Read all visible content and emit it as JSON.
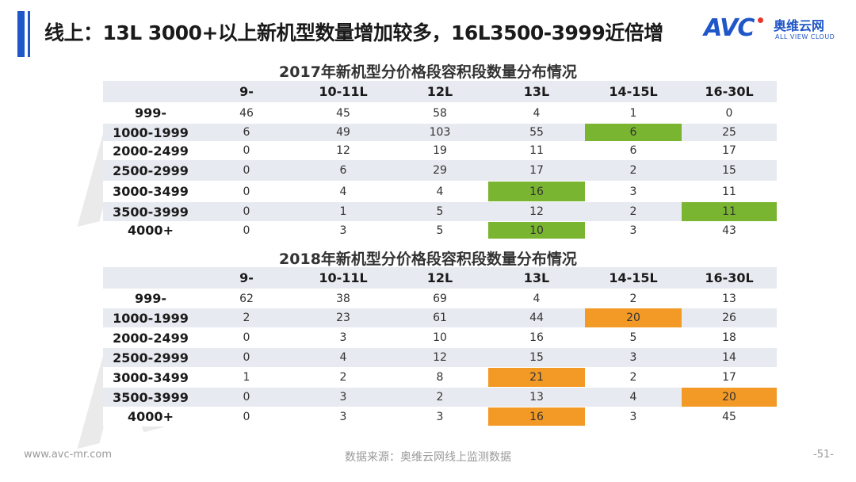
{
  "header": {
    "title": "线上：13L 3000+以上新机型数量增加较多，16L3500-3999近倍增",
    "logo_text": "AVC",
    "logo_cn": "奥维云网",
    "logo_en": "ALL VIEW CLOUD"
  },
  "watermark_text": "AVC",
  "columns": [
    "9-",
    "10-11L",
    "12L",
    "13L",
    "14-15L",
    "16-30L"
  ],
  "colors": {
    "accent": "#1f56c8",
    "highlight_2017": "#7ab532",
    "highlight_2018": "#f39a26",
    "band": "#e8eaf1"
  },
  "table_2017": {
    "title": "2017年新机型分价格段容积段数量分布情况",
    "rows": [
      {
        "label": "999-",
        "values": [
          "46",
          "45",
          "58",
          "4",
          "1",
          "0"
        ]
      },
      {
        "label": "1000-1999",
        "values": [
          "6",
          "49",
          "103",
          "55",
          "6",
          "25"
        ]
      },
      {
        "label": "2000-2499",
        "values": [
          "0",
          "12",
          "19",
          "11",
          "6",
          "17"
        ]
      },
      {
        "label": "2500-2999",
        "values": [
          "0",
          "6",
          "29",
          "17",
          "2",
          "15"
        ]
      },
      {
        "label": "3000-3499",
        "values": [
          "0",
          "4",
          "4",
          "16",
          "3",
          "11"
        ]
      },
      {
        "label": "3500-3999",
        "values": [
          "0",
          "1",
          "5",
          "12",
          "2",
          "11"
        ]
      },
      {
        "label": "4000+",
        "values": [
          "0",
          "3",
          "5",
          "10",
          "3",
          "43"
        ]
      }
    ],
    "highlights": [
      [
        1,
        4
      ],
      [
        4,
        3
      ],
      [
        5,
        5
      ],
      [
        6,
        3
      ]
    ]
  },
  "table_2018": {
    "title": "2018年新机型分价格段容积段数量分布情况",
    "rows": [
      {
        "label": "999-",
        "values": [
          "62",
          "38",
          "69",
          "4",
          "2",
          "13"
        ]
      },
      {
        "label": "1000-1999",
        "values": [
          "2",
          "23",
          "61",
          "44",
          "20",
          "26"
        ]
      },
      {
        "label": "2000-2499",
        "values": [
          "0",
          "3",
          "10",
          "16",
          "5",
          "18"
        ]
      },
      {
        "label": "2500-2999",
        "values": [
          "0",
          "4",
          "12",
          "15",
          "3",
          "14"
        ]
      },
      {
        "label": "3000-3499",
        "values": [
          "1",
          "2",
          "8",
          "21",
          "2",
          "17"
        ]
      },
      {
        "label": "3500-3999",
        "values": [
          "0",
          "3",
          "2",
          "13",
          "4",
          "20"
        ]
      },
      {
        "label": "4000+",
        "values": [
          "0",
          "3",
          "3",
          "16",
          "3",
          "45"
        ]
      }
    ],
    "highlights": [
      [
        1,
        4
      ],
      [
        4,
        3
      ],
      [
        5,
        5
      ],
      [
        6,
        3
      ]
    ]
  },
  "footer": {
    "website": "www.avc-mr.com",
    "source": "数据来源：奥维云网线上监测数据",
    "page": "-51-"
  }
}
